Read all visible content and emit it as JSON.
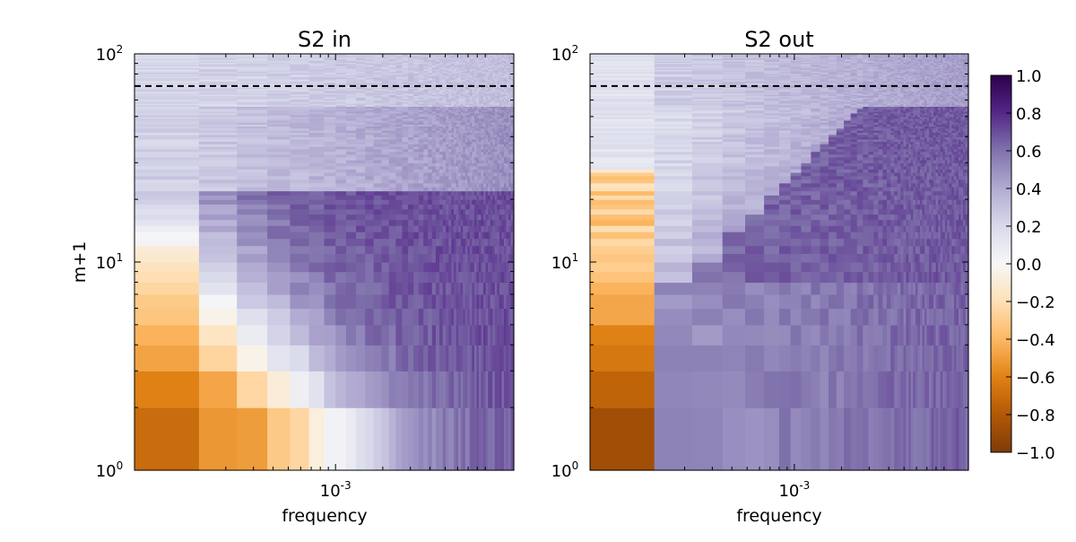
{
  "chart_data": [
    {
      "type": "heatmap",
      "title": "S2 in",
      "xlabel": "frequency",
      "ylabel": "m+1",
      "x_scale": "log",
      "y_scale": "log",
      "ylim": [
        1,
        100
      ],
      "x_tick_labels": [
        {
          "base": "10",
          "exp": "-3",
          "value": 0.001
        }
      ],
      "y_tick_labels": [
        {
          "base": "10",
          "exp": "0",
          "value": 1
        },
        {
          "base": "10",
          "exp": "1",
          "value": 10
        },
        {
          "base": "10",
          "exp": "2",
          "value": 100
        }
      ],
      "reference_line": {
        "y": 70,
        "style": "dashed",
        "color": "#000000"
      },
      "colors": {
        "low": "#7f3b08",
        "mid": "#f7f7f7",
        "high": "#2d004b"
      }
    },
    {
      "type": "heatmap",
      "title": "S2 out",
      "xlabel": "frequency",
      "x_scale": "log",
      "y_scale": "log",
      "ylim": [
        1,
        100
      ],
      "x_tick_labels": [
        {
          "base": "10",
          "exp": "-3",
          "value": 0.001
        }
      ],
      "y_tick_labels": [
        {
          "base": "10",
          "exp": "0",
          "value": 1
        },
        {
          "base": "10",
          "exp": "1",
          "value": 10
        },
        {
          "base": "10",
          "exp": "2",
          "value": 100
        }
      ],
      "reference_line": {
        "y": 70,
        "style": "dashed",
        "color": "#000000"
      },
      "colors": {
        "low": "#7f3b08",
        "mid": "#f7f7f7",
        "high": "#2d004b"
      }
    }
  ],
  "colorbar": {
    "range": [
      -1.0,
      1.0
    ],
    "tick_labels": [
      "1.0",
      "0.8",
      "0.6",
      "0.4",
      "0.2",
      "0.0",
      "−0.2",
      "−0.4",
      "−0.6",
      "−0.8",
      "−1.0"
    ],
    "colormap": "PuOr"
  }
}
